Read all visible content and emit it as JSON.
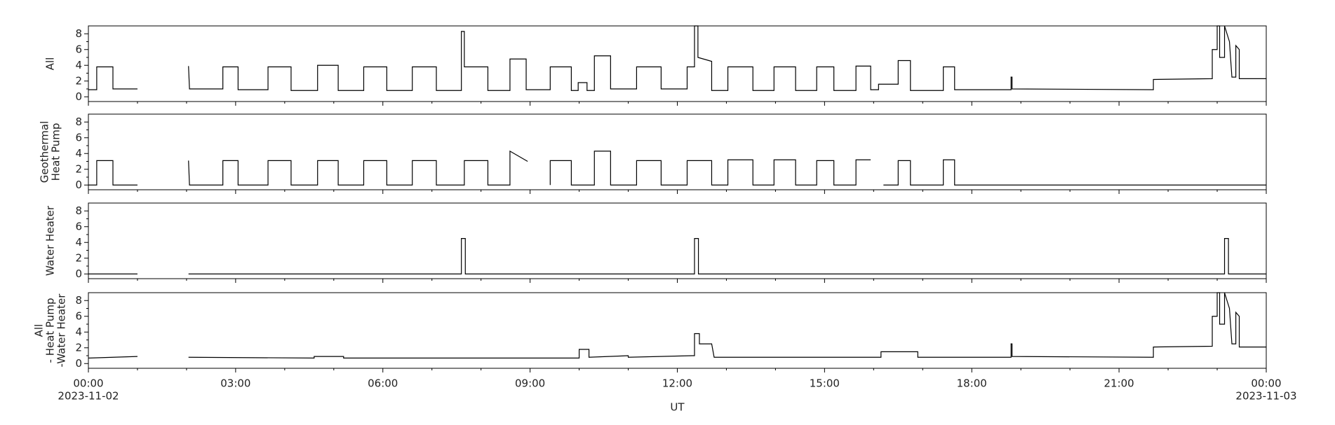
{
  "chart_data": [
    {
      "type": "line",
      "ylabel": [
        "All"
      ],
      "xlim": [
        0,
        24
      ],
      "ylim": [
        -0.6,
        9
      ],
      "yticks": [
        0,
        2,
        4,
        6,
        8
      ],
      "yminorticks": [
        1,
        3,
        5,
        7
      ],
      "xticks": [
        0,
        3,
        6,
        9,
        12,
        15,
        18,
        21,
        24
      ],
      "xminorticks": [
        1,
        2,
        4,
        5,
        7,
        8,
        10,
        11,
        13,
        14,
        16,
        17,
        19,
        20,
        22,
        23
      ],
      "series": [
        {
          "color": "#000000",
          "x": [
            0,
            0.17,
            0.17,
            0.5,
            0.5,
            1.0,
            1.5,
            2.04,
            2.06,
            2.74,
            2.74,
            3.05,
            3.05,
            3.66,
            3.66,
            4.13,
            4.13,
            4.67,
            4.67,
            5.09,
            5.09,
            5.61,
            5.61,
            6.08,
            6.08,
            6.6,
            6.6,
            7.09,
            7.09,
            7.6,
            7.6,
            7.66,
            7.66,
            8.14,
            8.14,
            8.59,
            8.59,
            8.92,
            8.92,
            9.41,
            9.41,
            9.84,
            9.84,
            9.98,
            9.98,
            10.16,
            10.16,
            10.31,
            10.31,
            10.64,
            10.64,
            11.17,
            11.17,
            11.67,
            11.67,
            12.2,
            12.2,
            12.35,
            12.35,
            12.42,
            12.42,
            12.7,
            12.7,
            13.03,
            13.03,
            13.54,
            13.54,
            13.97,
            13.97,
            14.41,
            14.41,
            14.84,
            14.84,
            15.19,
            15.19,
            15.64,
            15.64,
            15.94,
            15.94,
            16.1,
            16.1,
            16.5,
            16.5,
            16.75,
            16.75,
            17.42,
            17.42,
            17.65,
            17.65,
            18.8,
            18.8,
            18.82,
            18.82,
            21.7,
            21.7,
            22.9,
            22.9,
            23.0,
            23.0,
            23.05,
            23.05,
            23.15,
            23.15,
            23.25,
            23.3,
            23.38,
            23.38,
            23.45,
            23.45,
            24
          ],
          "values": [
            0.9,
            0.9,
            3.8,
            3.8,
            1.0,
            1.0,
            null,
            3.9,
            1.0,
            1.0,
            3.8,
            3.8,
            0.9,
            0.9,
            3.8,
            3.8,
            0.8,
            0.8,
            4.0,
            4.0,
            0.8,
            0.8,
            3.8,
            3.8,
            0.8,
            0.8,
            3.8,
            3.8,
            0.8,
            0.8,
            8.3,
            8.3,
            3.8,
            3.8,
            0.8,
            0.8,
            4.8,
            4.8,
            0.9,
            0.9,
            3.8,
            3.8,
            0.8,
            0.8,
            1.8,
            1.8,
            0.8,
            0.8,
            5.2,
            5.2,
            1.0,
            1.0,
            3.8,
            3.8,
            1.0,
            1.0,
            3.8,
            3.8,
            9.0,
            9.0,
            5.0,
            4.5,
            0.8,
            0.8,
            3.8,
            3.8,
            0.8,
            0.8,
            3.8,
            3.8,
            0.8,
            0.8,
            3.8,
            3.8,
            0.8,
            0.8,
            3.9,
            3.9,
            0.9,
            0.9,
            1.6,
            1.6,
            4.6,
            4.6,
            0.8,
            0.8,
            3.8,
            3.8,
            0.9,
            0.9,
            2.5,
            2.5,
            1.0,
            0.9,
            2.2,
            2.3,
            6.0,
            6.0,
            9.0,
            9.0,
            5.0,
            5.0,
            9.0,
            7.0,
            2.5,
            2.5,
            6.5,
            6.0,
            2.3,
            2.3
          ]
        }
      ]
    },
    {
      "type": "line",
      "ylabel": [
        "Geothermal",
        "Heat Pump"
      ],
      "xlim": [
        0,
        24
      ],
      "ylim": [
        -0.6,
        9
      ],
      "yticks": [
        0,
        2,
        4,
        6,
        8
      ],
      "yminorticks": [
        1,
        3,
        5,
        7
      ],
      "xticks": [
        0,
        3,
        6,
        9,
        12,
        15,
        18,
        21,
        24
      ],
      "xminorticks": [
        1,
        2,
        4,
        5,
        7,
        8,
        10,
        11,
        13,
        14,
        16,
        17,
        19,
        20,
        22,
        23
      ],
      "series": [
        {
          "color": "#000000",
          "x": [
            0,
            0.17,
            0.17,
            0.5,
            0.5,
            1.0,
            1.5,
            2.04,
            2.06,
            2.74,
            2.74,
            3.05,
            3.05,
            3.66,
            3.66,
            4.13,
            4.13,
            4.67,
            4.67,
            5.09,
            5.09,
            5.61,
            5.61,
            6.08,
            6.08,
            6.6,
            6.6,
            7.09,
            7.09,
            7.66,
            7.66,
            8.14,
            8.14,
            8.59,
            8.59,
            8.95,
            9.15,
            9.41,
            9.41,
            9.84,
            9.84,
            10.31,
            10.31,
            10.64,
            10.64,
            11.17,
            11.17,
            11.67,
            11.67,
            12.2,
            12.2,
            12.7,
            12.7,
            13.03,
            13.03,
            13.54,
            13.54,
            13.97,
            13.97,
            14.41,
            14.41,
            14.84,
            14.84,
            15.19,
            15.19,
            15.64,
            15.64,
            15.94,
            16.05,
            16.2,
            16.5,
            16.5,
            16.75,
            16.75,
            17.42,
            17.42,
            17.65,
            17.65,
            24
          ],
          "values": [
            0,
            0,
            3.1,
            3.1,
            0,
            0,
            null,
            3.1,
            0,
            0,
            3.1,
            3.1,
            0,
            0,
            3.1,
            3.1,
            0,
            0,
            3.1,
            3.1,
            0,
            0,
            3.1,
            3.1,
            0,
            0,
            3.1,
            3.1,
            0,
            0,
            3.1,
            3.1,
            0,
            0,
            4.3,
            3.0,
            null,
            0,
            3.1,
            3.1,
            0,
            0,
            4.3,
            4.3,
            0,
            0,
            3.1,
            3.1,
            0,
            0,
            3.1,
            3.1,
            0,
            0,
            3.2,
            3.2,
            0,
            0,
            3.2,
            3.2,
            0,
            0,
            3.1,
            3.1,
            0,
            0,
            3.2,
            3.2,
            null,
            0,
            0,
            3.1,
            3.1,
            0,
            0,
            3.2,
            3.2,
            0,
            0
          ]
        }
      ]
    },
    {
      "type": "line",
      "ylabel": [
        "Water Heater"
      ],
      "xlim": [
        0,
        24
      ],
      "ylim": [
        -0.6,
        9
      ],
      "yticks": [
        0,
        2,
        4,
        6,
        8
      ],
      "yminorticks": [
        1,
        3,
        5,
        7
      ],
      "xticks": [
        0,
        3,
        6,
        9,
        12,
        15,
        18,
        21,
        24
      ],
      "xminorticks": [
        1,
        2,
        4,
        5,
        7,
        8,
        10,
        11,
        13,
        14,
        16,
        17,
        19,
        20,
        22,
        23
      ],
      "series": [
        {
          "color": "#000000",
          "x": [
            0,
            1.0,
            1.5,
            2.04,
            7.6,
            7.6,
            7.68,
            7.68,
            12.35,
            12.35,
            12.43,
            12.43,
            23.15,
            23.15,
            23.23,
            23.23,
            24
          ],
          "values": [
            0,
            0,
            null,
            0,
            0,
            4.5,
            4.5,
            0,
            0,
            4.5,
            4.5,
            0,
            0,
            4.5,
            4.5,
            0,
            0
          ]
        }
      ]
    },
    {
      "type": "line",
      "ylabel": [
        "All",
        "- Heat Pump",
        "-Water Heater"
      ],
      "xlim": [
        0,
        24
      ],
      "ylim": [
        -0.6,
        9
      ],
      "yticks": [
        0,
        2,
        4,
        6,
        8
      ],
      "yminorticks": [
        1,
        3,
        5,
        7
      ],
      "xticks": [
        {
          "value": 0,
          "label": "00:00"
        },
        {
          "value": 3,
          "label": "03:00"
        },
        {
          "value": 6,
          "label": "06:00"
        },
        {
          "value": 9,
          "label": "09:00"
        },
        {
          "value": 12,
          "label": "12:00"
        },
        {
          "value": 15,
          "label": "15:00"
        },
        {
          "value": 18,
          "label": "18:00"
        },
        {
          "value": 21,
          "label": "21:00"
        },
        {
          "value": 24,
          "label": "00:00"
        }
      ],
      "xminorticks": [
        1,
        2,
        4,
        5,
        7,
        8,
        10,
        11,
        13,
        14,
        16,
        17,
        19,
        20,
        22,
        23
      ],
      "x_date_labels": [
        {
          "value": 0,
          "label": "2023-11-02"
        },
        {
          "value": 24,
          "label": "2023-11-03"
        }
      ],
      "xlabel": "UT",
      "series": [
        {
          "color": "#000000",
          "x": [
            0,
            1.0,
            1.5,
            2.04,
            4.6,
            4.6,
            5.2,
            5.2,
            10.0,
            10.0,
            10.2,
            10.2,
            11.0,
            11.0,
            12.3,
            12.35,
            12.35,
            12.45,
            12.45,
            12.7,
            12.75,
            16.15,
            16.15,
            16.9,
            16.9,
            18.8,
            18.8,
            18.82,
            18.82,
            21.7,
            21.7,
            22.9,
            22.9,
            23.0,
            23.0,
            23.05,
            23.05,
            23.15,
            23.15,
            23.25,
            23.3,
            23.38,
            23.38,
            23.45,
            23.45,
            24
          ],
          "values": [
            0.7,
            0.9,
            null,
            0.8,
            0.7,
            0.9,
            0.9,
            0.7,
            0.7,
            1.8,
            1.8,
            0.8,
            1.0,
            0.8,
            1.0,
            1.0,
            3.8,
            3.8,
            2.5,
            2.5,
            0.8,
            0.8,
            1.5,
            1.5,
            0.8,
            0.8,
            2.5,
            2.5,
            0.9,
            0.8,
            2.1,
            2.2,
            6.0,
            6.0,
            9.0,
            9.0,
            5.0,
            5.0,
            9.0,
            7.0,
            2.5,
            2.5,
            6.5,
            6.0,
            2.1,
            2.1
          ]
        }
      ]
    }
  ]
}
